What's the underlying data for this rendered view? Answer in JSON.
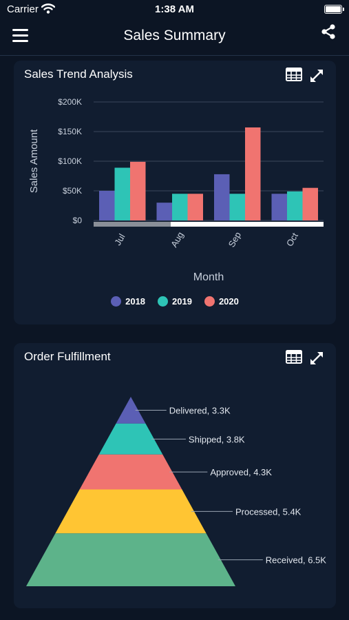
{
  "status_bar": {
    "carrier": "Carrier",
    "time": "1:38 AM"
  },
  "nav": {
    "title": "Sales Summary",
    "menu_icon": "hamburger-menu-icon",
    "share_icon": "share-icon"
  },
  "sales_trend": {
    "title": "Sales Trend Analysis",
    "legend_title": "",
    "icons": [
      "table-grid-icon",
      "expand-icon"
    ],
    "colors": {
      "2018": "#5b5fb5",
      "2019": "#2ec4b6",
      "2020": "#f07470"
    }
  },
  "chart_data": [
    {
      "type": "bar",
      "title": "Sales Trend Analysis",
      "xlabel": "Month",
      "ylabel": "Sales Amount",
      "categories": [
        "Jul",
        "Aug",
        "Sep",
        "Oct"
      ],
      "series": [
        {
          "name": "2018",
          "values": [
            50000,
            30000,
            78000,
            45000
          ]
        },
        {
          "name": "2019",
          "values": [
            89000,
            45000,
            45000,
            49000
          ]
        },
        {
          "name": "2020",
          "values": [
            99000,
            45000,
            157000,
            55000
          ]
        }
      ],
      "ylim": [
        0,
        200000
      ],
      "yticks": [
        0,
        50000,
        100000,
        150000,
        200000
      ],
      "ytick_labels": [
        "$0",
        "$50K",
        "$100K",
        "$150K",
        "$200K"
      ],
      "grid": true,
      "legend": "bottom"
    },
    {
      "type": "pyramid",
      "title": "Order Fulfillment",
      "categories": [
        "Delivered",
        "Shipped",
        "Approved",
        "Processed",
        "Received"
      ],
      "values": [
        3300,
        3800,
        4300,
        5400,
        6500
      ],
      "labels": [
        "Delivered, 3.3K",
        "Shipped, 3.8K",
        "Approved, 4.3K",
        "Processed, 5.4K",
        "Received, 6.5K"
      ],
      "colors": [
        "#5b5fb5",
        "#2ec4b6",
        "#f07470",
        "#ffc533",
        "#5db38a"
      ]
    }
  ],
  "order_fulfillment": {
    "title": "Order Fulfillment",
    "icons": [
      "table-grid-icon",
      "expand-icon"
    ]
  }
}
